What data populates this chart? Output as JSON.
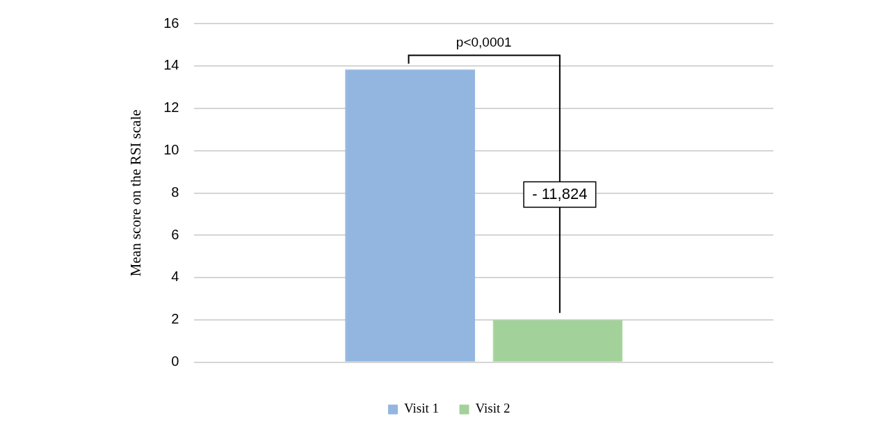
{
  "chart_data": {
    "type": "bar",
    "ylabel": "Mean score on the RSI scale",
    "categories": [
      null
    ],
    "series": [
      {
        "name": "Visit 1",
        "color": "#92b6df",
        "values": [
          13.85
        ]
      },
      {
        "name": "Visit 2",
        "color": "#a3d19a",
        "values": [
          2.0
        ]
      }
    ],
    "ylim": [
      0,
      16
    ],
    "yticks": [
      0,
      2,
      4,
      6,
      8,
      10,
      12,
      14,
      16
    ],
    "grid": "y",
    "legend": "bottom",
    "annotations": [
      "p<0,0001",
      "- 11,824"
    ]
  }
}
